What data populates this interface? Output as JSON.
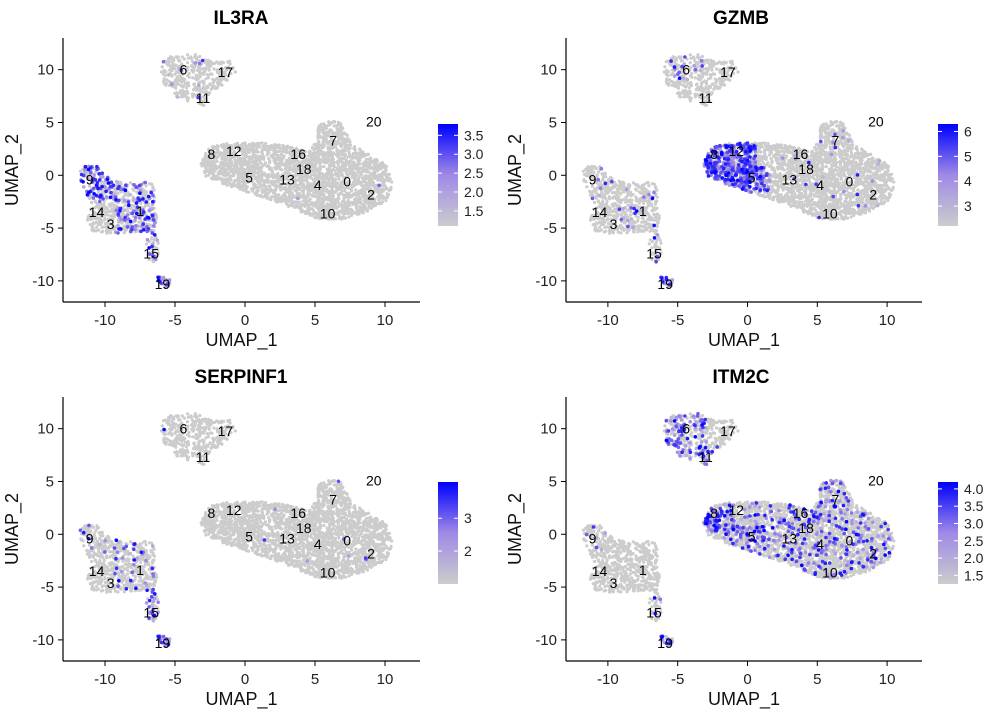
{
  "chart_data": [
    {
      "type": "scatter",
      "title": "IL3RA",
      "xlabel": "UMAP_1",
      "ylabel": "UMAP_2",
      "xlim": [
        -13,
        12.5
      ],
      "ylim": [
        -12,
        13
      ],
      "xticks": [
        -10,
        -5,
        0,
        5,
        10
      ],
      "yticks": [
        -10,
        -5,
        0,
        5,
        10
      ],
      "legend": {
        "placement": "right",
        "min": 1.1,
        "max": 3.8,
        "ticks": [
          1.5,
          2.0,
          2.5,
          3.0,
          3.5
        ],
        "tick_labels": [
          "1.5",
          "2.0",
          "2.5",
          "3.0",
          "3.5"
        ]
      },
      "colors": {
        "low": "#cccccc",
        "high": "#0000ff"
      },
      "expression": {
        "pdc_main": 0.55,
        "pdc_arm": 0.35,
        "c15": 0.45,
        "c19": 0.95,
        "c6": 0.08,
        "c11": 0.03,
        "big": 0.002
      }
    },
    {
      "type": "scatter",
      "title": "GZMB",
      "xlabel": "UMAP_1",
      "ylabel": "UMAP_2",
      "xlim": [
        -13,
        12.5
      ],
      "ylim": [
        -12,
        13
      ],
      "xticks": [
        -10,
        -5,
        0,
        5,
        10
      ],
      "yticks": [
        -10,
        -5,
        0,
        5,
        10
      ],
      "legend": {
        "placement": "right",
        "min": 2.2,
        "max": 6.3,
        "ticks": [
          3,
          4,
          5,
          6
        ],
        "tick_labels": [
          "3",
          "4",
          "5",
          "6"
        ]
      },
      "colors": {
        "low": "#cccccc",
        "high": "#0000ff"
      },
      "expression": {
        "nk_left": 0.85,
        "c5_core": 0.7,
        "big": 0.015,
        "c7_tip": 0.08,
        "pdc_main": 0.05,
        "pdc_arm": 0.05,
        "c15": 0.15,
        "c19": 0.6,
        "c6": 0.1
      }
    },
    {
      "type": "scatter",
      "title": "SERPINF1",
      "xlabel": "UMAP_1",
      "ylabel": "UMAP_2",
      "xlim": [
        -13,
        12.5
      ],
      "ylim": [
        -12,
        13
      ],
      "xticks": [
        -10,
        -5,
        0,
        5,
        10
      ],
      "yticks": [
        -10,
        -5,
        0,
        5,
        10
      ],
      "legend": {
        "placement": "right",
        "min": 1.0,
        "max": 4.1,
        "ticks": [
          2,
          3
        ],
        "tick_labels": [
          "2",
          "3"
        ]
      },
      "colors": {
        "low": "#cccccc",
        "high": "#0000ff"
      },
      "expression": {
        "pdc_main": 0.1,
        "pdc_arm": 0.12,
        "c15": 0.5,
        "c19": 1.0,
        "big": 0.004,
        "c6": 0.01
      }
    },
    {
      "type": "scatter",
      "title": "ITM2C",
      "xlabel": "UMAP_1",
      "ylabel": "UMAP_2",
      "xlim": [
        -13,
        12.5
      ],
      "ylim": [
        -12,
        13
      ],
      "xticks": [
        -10,
        -5,
        0,
        5,
        10
      ],
      "yticks": [
        -10,
        -5,
        0,
        5,
        10
      ],
      "legend": {
        "placement": "right",
        "min": 1.25,
        "max": 4.2,
        "ticks": [
          1.5,
          2.0,
          2.5,
          3.0,
          3.5,
          4.0
        ],
        "tick_labels": [
          "1.5",
          "2.0",
          "2.5",
          "3.0",
          "3.5",
          "4.0"
        ]
      },
      "colors": {
        "low": "#cccccc",
        "high": "#0000ff"
      },
      "expression": {
        "big": 0.18,
        "c8_edge": 0.75,
        "c5_core": 0.3,
        "c6": 0.45,
        "c11": 0.3,
        "pdc_main": 0.04,
        "c19": 0.5,
        "c15": 0.05
      }
    }
  ],
  "cluster_labels": [
    {
      "id": "0",
      "x": 7.3,
      "y": -0.6
    },
    {
      "id": "1",
      "x": -7.5,
      "y": -3.4
    },
    {
      "id": "2",
      "x": 9.0,
      "y": -1.8
    },
    {
      "id": "3",
      "x": -9.6,
      "y": -4.6
    },
    {
      "id": "4",
      "x": 5.2,
      "y": -0.9
    },
    {
      "id": "5",
      "x": 0.3,
      "y": -0.2
    },
    {
      "id": "6",
      "x": -4.4,
      "y": 10.0
    },
    {
      "id": "7",
      "x": 6.3,
      "y": 3.3
    },
    {
      "id": "8",
      "x": -2.4,
      "y": 2.0
    },
    {
      "id": "9",
      "x": -11.1,
      "y": -0.4
    },
    {
      "id": "10",
      "x": 5.9,
      "y": -3.6
    },
    {
      "id": "11",
      "x": -3.0,
      "y": 7.3
    },
    {
      "id": "12",
      "x": -0.8,
      "y": 2.3
    },
    {
      "id": "13",
      "x": 3.0,
      "y": -0.4
    },
    {
      "id": "14",
      "x": -10.6,
      "y": -3.5
    },
    {
      "id": "15",
      "x": -6.7,
      "y": -7.4
    },
    {
      "id": "16",
      "x": 3.8,
      "y": 2.0
    },
    {
      "id": "17",
      "x": -1.4,
      "y": 9.8
    },
    {
      "id": "18",
      "x": 4.2,
      "y": 0.6
    },
    {
      "id": "19",
      "x": -5.9,
      "y": -10.3
    },
    {
      "id": "20",
      "x": 9.2,
      "y": 5.1
    }
  ]
}
